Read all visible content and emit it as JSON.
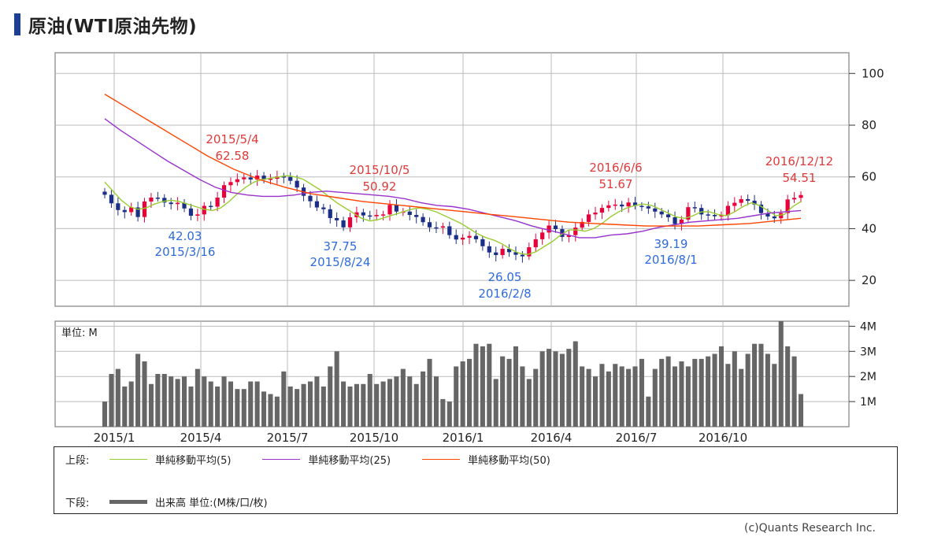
{
  "title": "原油(WTI原油先物)",
  "copyright": "(c)Quants Research Inc.",
  "legend": {
    "upper_label": "上段:",
    "lower_label": "下段:",
    "ma5": "単純移動平均(5)",
    "ma25": "単純移動平均(25)",
    "ma50": "単純移動平均(50)",
    "volume": "出来高 単位:(M株/口/枚)",
    "colors": {
      "ma5": "#9acd32",
      "ma25": "#9932cc",
      "ma50": "#ff4500",
      "volume": "#666666"
    }
  },
  "chart_data": [
    {
      "type": "candlestick",
      "title": "原油(WTI原油先物)",
      "x_range": [
        "2014/12/29",
        "2016/12/26"
      ],
      "x_tick_labels": [
        "2015/1",
        "2015/4",
        "2015/7",
        "2015/10",
        "2016/1",
        "2016/4",
        "2016/7",
        "2016/10"
      ],
      "ylim": [
        10,
        108
      ],
      "y_ticks": [
        20,
        40,
        60,
        80,
        100
      ],
      "grid": true,
      "colors": {
        "up": "#e8003a",
        "down": "#1c2f86"
      },
      "weekly_closes": [
        53.1,
        49.8,
        47.2,
        46.4,
        48.2,
        44.5,
        50.5,
        52.0,
        51.9,
        50.1,
        49.5,
        50.0,
        47.8,
        45.0,
        45.5,
        48.8,
        48.5,
        52.0,
        56.8,
        58.0,
        59.1,
        59.8,
        59.0,
        60.5,
        58.9,
        59.3,
        60.2,
        60.0,
        58.5,
        55.9,
        52.7,
        50.6,
        48.2,
        47.5,
        44.1,
        43.2,
        40.5,
        44.4,
        46.3,
        45.1,
        44.8,
        45.3,
        45.5,
        49.2,
        46.6,
        46.6,
        45.3,
        44.5,
        42.5,
        40.5,
        40.4,
        40.9,
        37.5,
        35.8,
        36.5,
        37.2,
        35.9,
        33.2,
        30.8,
        29.8,
        32.2,
        30.9,
        29.9,
        29.3,
        32.8,
        35.9,
        38.5,
        41.2,
        39.8,
        36.8,
        37.5,
        40.4,
        42.6,
        45.5,
        46.2,
        48.0,
        49.0,
        49.3,
        48.6,
        50.1,
        48.8,
        48.6,
        47.8,
        46.6,
        45.5,
        44.4,
        41.8,
        43.5,
        48.3,
        48.0,
        45.5,
        45.3,
        44.8,
        45.2,
        48.8,
        50.0,
        51.4,
        50.8,
        49.3,
        46.0,
        44.7,
        44.0,
        46.0,
        51.3,
        51.9,
        53.0
      ],
      "annotations": [
        {
          "label": "2015/5/4",
          "value": "62.58",
          "kind": "high"
        },
        {
          "label": "2015/3/16",
          "value": "42.03",
          "kind": "low"
        },
        {
          "label": "2015/10/5",
          "value": "50.92",
          "kind": "high"
        },
        {
          "label": "2015/8/24",
          "value": "37.75",
          "kind": "low"
        },
        {
          "label": "2016/2/8",
          "value": "26.05",
          "kind": "low"
        },
        {
          "label": "2016/6/6",
          "value": "51.67",
          "kind": "high"
        },
        {
          "label": "2016/8/1",
          "value": "39.19",
          "kind": "low"
        },
        {
          "label": "2016/12/12",
          "value": "54.51",
          "kind": "high"
        }
      ],
      "series": [
        {
          "name": "単純移動平均(5)",
          "color": "#9acd32",
          "values": [
            58.0,
            54.5,
            51.0,
            48.5,
            47.5,
            48.0,
            49.5,
            50.5,
            51.0,
            50.5,
            49.5,
            48.5,
            47.5,
            47.0,
            48.0,
            50.5,
            53.5,
            56.0,
            58.0,
            59.0,
            59.5,
            60.0,
            60.5,
            60.0,
            59.0,
            57.0,
            55.0,
            52.5,
            50.0,
            48.0,
            46.0,
            44.0,
            43.0,
            43.5,
            44.5,
            45.5,
            46.5,
            47.5,
            48.0,
            47.5,
            46.5,
            45.0,
            43.5,
            42.0,
            40.0,
            38.0,
            36.5,
            35.5,
            34.0,
            32.0,
            30.5,
            30.0,
            31.0,
            33.0,
            35.0,
            37.5,
            39.5,
            39.5,
            39.0,
            40.0,
            42.0,
            44.5,
            46.5,
            48.0,
            49.0,
            49.5,
            49.0,
            47.5,
            46.0,
            44.5,
            44.0,
            45.0,
            46.5,
            46.5,
            45.5,
            45.0,
            46.5,
            48.5,
            50.0,
            49.0,
            47.0,
            45.0,
            45.5,
            48.5,
            50.5
          ]
        },
        {
          "name": "単純移動平均(25)",
          "color": "#9932cc",
          "values": [
            82.5,
            78.0,
            74.0,
            70.0,
            66.0,
            62.5,
            59.0,
            56.0,
            54.0,
            53.0,
            52.5,
            52.5,
            53.0,
            54.0,
            54.5,
            54.0,
            53.5,
            53.0,
            52.5,
            51.5,
            50.0,
            49.0,
            48.5,
            47.5,
            46.0,
            44.5,
            43.0,
            41.0,
            39.5,
            38.0,
            36.5,
            36.5,
            37.5,
            38.0,
            39.0,
            40.5,
            41.5,
            42.5,
            43.0,
            43.5,
            44.0,
            45.0,
            46.0,
            46.5,
            47.0
          ]
        },
        {
          "name": "単純移動平均(50)",
          "color": "#ff4500",
          "values": [
            92.0,
            86.0,
            80.0,
            74.0,
            68.0,
            63.0,
            59.0,
            56.0,
            53.5,
            52.0,
            50.5,
            49.5,
            48.5,
            47.5,
            46.5,
            45.5,
            44.5,
            43.5,
            42.5,
            42.0,
            41.5,
            41.0,
            41.0,
            41.0,
            41.5,
            42.0,
            43.0,
            44.0
          ]
        }
      ]
    },
    {
      "type": "bar",
      "unit_label": "単位: M",
      "ylim": [
        0,
        4.2
      ],
      "y_tick_labels": [
        "1M",
        "2M",
        "3M",
        "4M"
      ],
      "y_ticks": [
        1,
        2,
        3,
        4
      ],
      "color": "#666666",
      "values": [
        1.0,
        2.1,
        2.3,
        1.6,
        1.8,
        2.9,
        2.6,
        1.7,
        2.1,
        2.1,
        2.0,
        1.9,
        2.0,
        1.6,
        2.3,
        2.0,
        1.8,
        1.6,
        2.0,
        1.8,
        1.5,
        1.5,
        1.8,
        1.8,
        1.4,
        1.3,
        1.2,
        2.2,
        1.6,
        1.5,
        1.7,
        1.8,
        2.0,
        1.6,
        2.4,
        3.0,
        1.8,
        1.6,
        1.7,
        1.7,
        2.1,
        1.7,
        1.8,
        1.9,
        2.0,
        2.3,
        2.0,
        1.7,
        2.2,
        2.7,
        2.0,
        1.1,
        1.0,
        2.4,
        2.6,
        2.7,
        3.3,
        3.2,
        3.3,
        1.9,
        2.8,
        2.7,
        3.2,
        2.4,
        1.9,
        2.3,
        3.0,
        3.1,
        3.0,
        2.9,
        3.1,
        3.4,
        2.4,
        2.3,
        2.0,
        2.5,
        2.2,
        2.5,
        2.4,
        2.3,
        2.4,
        2.7,
        1.2,
        2.3,
        2.7,
        2.8,
        2.4,
        2.6,
        2.4,
        2.7,
        2.7,
        2.8,
        2.9,
        3.2,
        2.5,
        3.0,
        2.3,
        2.9,
        3.3,
        3.3,
        2.9,
        2.5,
        4.2,
        3.2,
        2.8,
        1.3
      ]
    }
  ]
}
